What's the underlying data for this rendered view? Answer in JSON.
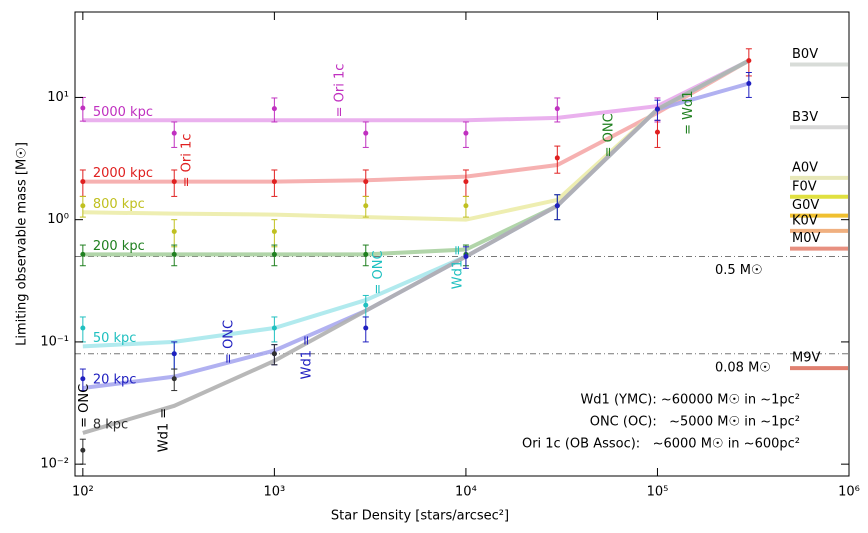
{
  "chart_data": {
    "type": "line",
    "x_label": "Star Density [stars/arcsec²]",
    "y_label": "Limiting observable mass [M☉]",
    "log_x": true,
    "log_y": true,
    "xlim": [
      91,
      1000000
    ],
    "ylim": [
      0.008,
      50
    ],
    "xticks": [
      {
        "value": 100,
        "label": "10²"
      },
      {
        "value": 1000,
        "label": "10³"
      },
      {
        "value": 10000,
        "label": "10⁴"
      },
      {
        "value": 100000,
        "label": "10⁵"
      },
      {
        "value": 1000000,
        "label": "10⁶"
      }
    ],
    "yticks": [
      {
        "value": 0.01,
        "label": "10⁻²"
      },
      {
        "value": 0.1,
        "label": "10⁻¹"
      },
      {
        "value": 1,
        "label": "10⁰"
      },
      {
        "value": 10,
        "label": "10¹"
      }
    ],
    "x": [
      100,
      300,
      1000,
      3000,
      10000,
      30000,
      100000,
      300000
    ],
    "series": [
      {
        "name": "5000 kpc",
        "color": "#e8a8ec",
        "point_color": "#c030c0",
        "values": [
          6.5,
          6.5,
          6.5,
          6.5,
          6.5,
          6.8,
          8.5,
          20
        ],
        "point_values": [
          8.2,
          5.1,
          8.1,
          5.1,
          5.1,
          8.1,
          8.1,
          null
        ],
        "point_errors": [
          1.8,
          1.2,
          1.8,
          1.2,
          1.2,
          1.8,
          1.8,
          null
        ]
      },
      {
        "name": "2000 kpc",
        "color": "#f5a8a8",
        "point_color": "#e02020",
        "values": [
          2.05,
          2.05,
          2.05,
          2.1,
          2.25,
          2.8,
          7.5,
          20
        ],
        "point_values": [
          2.05,
          2.05,
          2.05,
          2.05,
          2.05,
          3.2,
          5.2,
          20
        ],
        "point_errors": [
          0.5,
          0.5,
          0.5,
          0.5,
          0.5,
          0.8,
          1.3,
          5
        ]
      },
      {
        "name": "800 kpc",
        "color": "#ececa8",
        "point_color": "#c0c020",
        "values": [
          1.15,
          1.12,
          1.1,
          1.05,
          1.0,
          1.45,
          8,
          20
        ],
        "point_values": [
          1.3,
          0.8,
          0.8,
          1.3,
          1.3,
          null,
          null,
          null
        ],
        "point_errors": [
          0.25,
          0.2,
          0.2,
          0.25,
          0.25,
          null,
          null,
          null
        ]
      },
      {
        "name": "200 kpc",
        "color": "#a8d0a0",
        "point_color": "#208020",
        "values": [
          0.52,
          0.52,
          0.52,
          0.52,
          0.57,
          1.3,
          8,
          20
        ],
        "point_values": [
          0.52,
          0.52,
          0.52,
          0.52,
          0.52,
          1.3,
          null,
          null
        ],
        "point_errors": [
          0.1,
          0.1,
          0.1,
          0.1,
          0.1,
          0.3,
          null,
          null
        ]
      },
      {
        "name": "50 kpc",
        "color": "#a8e8ec",
        "point_color": "#20c0c0",
        "values": [
          0.092,
          0.1,
          0.13,
          0.22,
          0.5,
          1.3,
          8,
          20
        ],
        "point_values": [
          0.13,
          0.08,
          0.13,
          0.2,
          null,
          null,
          null,
          null
        ],
        "point_errors": [
          0.03,
          0.02,
          0.03,
          0.04,
          null,
          null,
          null,
          null
        ]
      },
      {
        "name": "20 kpc",
        "color": "#a8a8f0",
        "point_color": "#2020c0",
        "values": [
          0.042,
          0.052,
          0.085,
          0.18,
          0.5,
          1.3,
          8,
          13
        ],
        "point_values": [
          0.05,
          0.08,
          0.08,
          0.13,
          0.5,
          1.3,
          8,
          13
        ],
        "point_errors": [
          0.01,
          0.02,
          0.015,
          0.03,
          0.1,
          0.3,
          1.5,
          3
        ]
      },
      {
        "name": "8 kpc",
        "color": "#b0b0b0",
        "point_color": "#303030",
        "values": [
          0.018,
          0.03,
          0.07,
          0.18,
          0.5,
          1.3,
          8,
          20
        ],
        "point_values": [
          0.013,
          0.05,
          0.08,
          null,
          null,
          null,
          null,
          null
        ],
        "point_errors": [
          0.003,
          0.01,
          0.015,
          null,
          null,
          null,
          null,
          null
        ]
      }
    ],
    "annotations": [
      {
        "text": "= Ori 1c",
        "x": 2200,
        "y": 11.4,
        "color": "#c030c0"
      },
      {
        "text": "= Ori 1c",
        "x": 350,
        "y": 3.05,
        "color": "#e02020"
      },
      {
        "text": "= ONC",
        "x": 56000,
        "y": 4.9,
        "color": "#208020"
      },
      {
        "text": "= Wd1",
        "x": 145000,
        "y": 7.5,
        "color": "#208020"
      },
      {
        "text": "= ONC",
        "x": 3500,
        "y": 0.37,
        "color": "#20c0c0"
      },
      {
        "text": "Wd1 =",
        "x": 9100,
        "y": 0.41,
        "color": "#20c0c0"
      },
      {
        "text": "= ONC",
        "x": 580,
        "y": 0.1,
        "color": "#2020c0"
      },
      {
        "text": "Wd1 =",
        "x": 1480,
        "y": 0.075,
        "color": "#2020c0"
      },
      {
        "text": "= ONC",
        "x": 102,
        "y": 0.03,
        "color": "#000000"
      },
      {
        "text": "Wd1 =",
        "x": 265,
        "y": 0.019,
        "color": "#000000"
      }
    ],
    "reference_lines": [
      {
        "value": 0.5,
        "label": "0.5 M☉"
      },
      {
        "value": 0.08,
        "label": "0.08 M☉"
      }
    ],
    "spectral_types": [
      {
        "name": "B0V",
        "mass": 18.6,
        "color": "#d8dcd8"
      },
      {
        "name": "B3V",
        "mass": 5.7,
        "color": "#d8d8d8"
      },
      {
        "name": "A0V",
        "mass": 2.2,
        "color": "#e8e8b8"
      },
      {
        "name": "F0V",
        "mass": 1.54,
        "color": "#e0e040"
      },
      {
        "name": "G0V",
        "mass": 1.08,
        "color": "#f0c030"
      },
      {
        "name": "K0V",
        "mass": 0.81,
        "color": "#f0b080"
      },
      {
        "name": "M0V",
        "mass": 0.58,
        "color": "#e89080"
      },
      {
        "name": "M9V",
        "mass": 0.061,
        "color": "#e08070"
      }
    ],
    "notes": [
      "Wd1 (YMC): ~60000 M☉ in ~1pc²",
      "ONC (OC):   ~5000 M☉ in ~1pc²",
      "Ori 1c (OB Assoc):   ~6000 M☉ in ~600pc²"
    ]
  }
}
